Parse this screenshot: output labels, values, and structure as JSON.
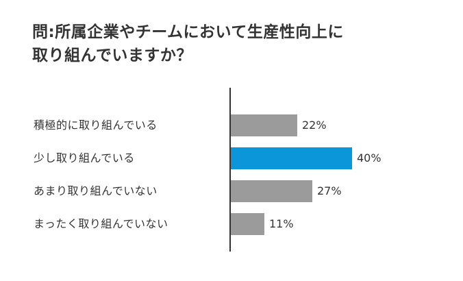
{
  "title": {
    "line1": "問:所属企業やチームにおいて生産性向上に",
    "line2": "取り組んでいますか？"
  },
  "colors": {
    "highlight": "#0a96d9",
    "default": "#9b9b9b",
    "axis": "#333333",
    "text": "#333333"
  },
  "chart_data": {
    "type": "bar",
    "orientation": "horizontal",
    "title": "問:所属企業やチームにおいて生産性向上に取り組んでいますか？",
    "categories": [
      "積極的に取り組んでいる",
      "少し取り組んでいる",
      "あまり取り組んでいない",
      "まったく取り組んでいない"
    ],
    "values": [
      22,
      40,
      27,
      11
    ],
    "value_labels": [
      "22%",
      "40%",
      "27%",
      "11%"
    ],
    "unit": "%",
    "highlighted_index": 1,
    "xlabel": "",
    "ylabel": "",
    "grid": false,
    "legend": null
  }
}
